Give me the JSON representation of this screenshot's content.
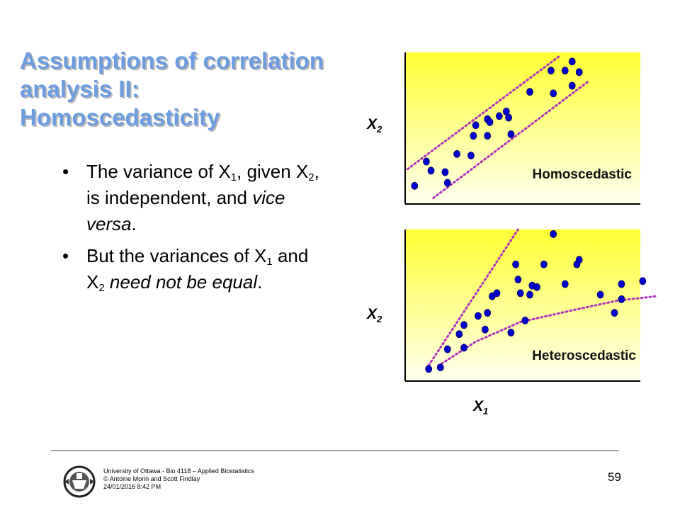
{
  "title": {
    "lines": [
      "Assumptions of correlation",
      "analysis II:",
      "Homoscedasticity"
    ],
    "color": "#6b9be0"
  },
  "bullets": [
    {
      "segments": [
        {
          "t": "The variance of X"
        },
        {
          "t": "1",
          "sub": true
        },
        {
          "t": ", given X"
        },
        {
          "t": "2",
          "sub": true
        },
        {
          "t": ", is independent, and "
        },
        {
          "t": "vice versa",
          "em": true
        },
        {
          "t": "."
        }
      ]
    },
    {
      "segments": [
        {
          "t": "But the variances of X"
        },
        {
          "t": "1",
          "sub": true
        },
        {
          "t": " and X"
        },
        {
          "t": "2",
          "sub": true
        },
        {
          "t": " need not be equal",
          "em": true
        },
        {
          "t": "."
        }
      ]
    }
  ],
  "plots": {
    "fill_top": "#ffff33",
    "fill_bottom": "#ffffee",
    "point_color": "#0000cc",
    "bound_color": "#b030c0",
    "top": {
      "label": "Homoscedastic",
      "ylabel": "X",
      "ylabel_sub": "2",
      "points": [
        [
          0.04,
          0.12
        ],
        [
          0.09,
          0.28
        ],
        [
          0.11,
          0.22
        ],
        [
          0.17,
          0.21
        ],
        [
          0.18,
          0.14
        ],
        [
          0.22,
          0.33
        ],
        [
          0.28,
          0.32
        ],
        [
          0.29,
          0.45
        ],
        [
          0.3,
          0.52
        ],
        [
          0.35,
          0.45
        ],
        [
          0.35,
          0.56
        ],
        [
          0.36,
          0.54
        ],
        [
          0.4,
          0.58
        ],
        [
          0.43,
          0.61
        ],
        [
          0.44,
          0.57
        ],
        [
          0.45,
          0.46
        ],
        [
          0.53,
          0.74
        ],
        [
          0.62,
          0.88
        ],
        [
          0.63,
          0.73
        ],
        [
          0.68,
          0.88
        ],
        [
          0.71,
          0.94
        ],
        [
          0.71,
          0.78
        ],
        [
          0.74,
          0.87
        ]
      ],
      "bounds": [
        [
          [
            0.01,
            0.23
          ],
          [
            0.66,
            0.98
          ]
        ],
        [
          [
            0.12,
            0.04
          ],
          [
            0.78,
            0.81
          ]
        ]
      ]
    },
    "bottom": {
      "label": "Heteroscedastic",
      "ylabel": "X",
      "ylabel_sub": "2",
      "xlabel": "X",
      "xlabel_sub": "1",
      "points": [
        [
          0.1,
          0.08
        ],
        [
          0.15,
          0.09
        ],
        [
          0.18,
          0.21
        ],
        [
          0.23,
          0.31
        ],
        [
          0.25,
          0.37
        ],
        [
          0.25,
          0.22
        ],
        [
          0.31,
          0.43
        ],
        [
          0.34,
          0.34
        ],
        [
          0.35,
          0.45
        ],
        [
          0.37,
          0.56
        ],
        [
          0.39,
          0.58
        ],
        [
          0.45,
          0.32
        ],
        [
          0.47,
          0.77
        ],
        [
          0.48,
          0.67
        ],
        [
          0.49,
          0.58
        ],
        [
          0.51,
          0.4
        ],
        [
          0.53,
          0.57
        ],
        [
          0.54,
          0.63
        ],
        [
          0.56,
          0.62
        ],
        [
          0.59,
          0.77
        ],
        [
          0.63,
          0.97
        ],
        [
          0.68,
          0.64
        ],
        [
          0.73,
          0.77
        ],
        [
          0.74,
          0.8
        ],
        [
          0.83,
          0.57
        ],
        [
          0.89,
          0.45
        ],
        [
          0.92,
          0.64
        ],
        [
          0.92,
          0.54
        ],
        [
          1.01,
          0.66
        ]
      ],
      "bounds": [
        [
          [
            0.09,
            0.08
          ],
          [
            0.48,
            1.0
          ]
        ],
        [
          [
            0.14,
            0.1
          ],
          [
            0.3,
            0.26
          ],
          [
            0.49,
            0.39
          ],
          [
            0.72,
            0.47
          ],
          [
            0.9,
            0.53
          ],
          [
            1.07,
            0.56
          ]
        ]
      ]
    }
  },
  "footer": {
    "lines": [
      "University of Ottawa - Bio 4118 – Applied Biostatistics",
      "© Antoine Morin and Scott Findlay",
      "24/01/2016 8:42 PM"
    ],
    "page": "59"
  }
}
